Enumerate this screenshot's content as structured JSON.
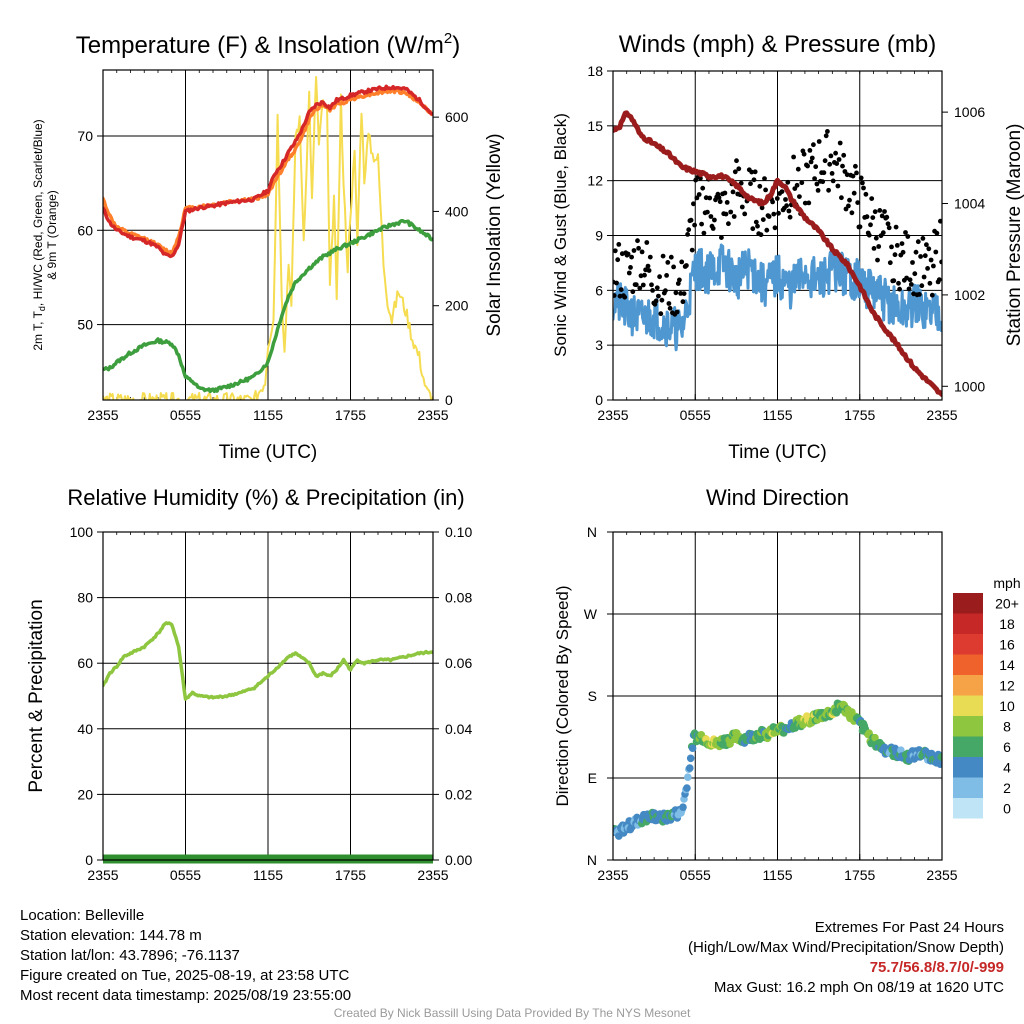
{
  "chart_data": [
    {
      "type": "line",
      "title": "Temperature (F) & Insolation (W/m",
      "title_sup": "2",
      "title_end": ")",
      "xlabel": "Time (UTC)",
      "ylabel_left_line1": "2m T, T",
      "ylabel_left_sub": "d",
      "ylabel_left_line1_end": ", HI/WC (Red, Green, Scarlet/Blue)",
      "ylabel_left_line2": "& 9m T (Orange)",
      "ylabel_right": "Solar Insolation (Yellow)",
      "x_tick_labels": [
        "2355",
        "0555",
        "1155",
        "1755",
        "2355"
      ],
      "xlim": [
        0,
        24
      ],
      "ylim_left": [
        42,
        77
      ],
      "yticks_left": [
        50,
        60,
        70
      ],
      "ylim_right": [
        0,
        700
      ],
      "yticks_right": [
        0,
        200,
        400,
        600
      ],
      "series": [
        {
          "name": "2m T",
          "color": "#d62728",
          "axis": "left",
          "x": [
            0,
            0.5,
            1,
            2,
            3,
            3.5,
            4,
            4.5,
            5,
            5.5,
            6,
            7,
            8,
            9,
            10,
            11,
            12,
            12.5,
            13,
            13.5,
            14,
            14.5,
            15,
            15.5,
            16,
            16.5,
            17,
            17.5,
            18,
            19,
            20,
            21,
            22,
            23,
            24
          ],
          "y": [
            62.3,
            60.8,
            60.0,
            59.3,
            58.9,
            58.6,
            58.2,
            57.4,
            57.2,
            58.5,
            62.0,
            62.4,
            62.6,
            62.9,
            63.1,
            63.3,
            64.2,
            66.0,
            67.0,
            68.3,
            69.4,
            70.8,
            72.5,
            73.3,
            73.6,
            73.0,
            73.8,
            74.0,
            74.3,
            74.7,
            75.0,
            75.2,
            75.0,
            73.8,
            72.2
          ]
        },
        {
          "name": "9m T",
          "color": "#ff7f2a",
          "axis": "left",
          "x": [
            0,
            0.5,
            1,
            2,
            3,
            3.5,
            4,
            4.5,
            5,
            5.5,
            6,
            7,
            8,
            9,
            10,
            11,
            12,
            12.5,
            13,
            13.5,
            14,
            14.5,
            15,
            15.5,
            16,
            16.5,
            17,
            17.5,
            18,
            19,
            20,
            21,
            22,
            23,
            24
          ],
          "y": [
            63.3,
            61.5,
            60.3,
            59.6,
            59.1,
            58.8,
            58.4,
            57.9,
            57.6,
            59.3,
            62.3,
            62.5,
            62.7,
            63.0,
            63.2,
            63.3,
            63.8,
            65.3,
            66.4,
            67.6,
            68.6,
            70.0,
            71.8,
            72.9,
            73.3,
            72.8,
            73.3,
            73.6,
            73.9,
            74.3,
            74.6,
            74.8,
            74.6,
            73.6,
            72.2
          ]
        },
        {
          "name": "2m Td",
          "color": "#3d9e3d",
          "axis": "left",
          "x": [
            0,
            0.5,
            1,
            2,
            3,
            4,
            5,
            5.5,
            6,
            6.5,
            7,
            8,
            9,
            10,
            11,
            12,
            12.5,
            13,
            13.5,
            14,
            15,
            16,
            17,
            18,
            19,
            20,
            21,
            22,
            23,
            24
          ],
          "y": [
            45.2,
            45.4,
            46.0,
            47.0,
            47.8,
            48.3,
            48.0,
            46.8,
            44.4,
            44.0,
            43.2,
            43.0,
            43.4,
            43.9,
            44.5,
            46.0,
            48.5,
            51.0,
            53.0,
            54.5,
            56.0,
            57.2,
            58.0,
            58.6,
            59.3,
            60.0,
            60.6,
            61.0,
            60.0,
            59.0
          ]
        },
        {
          "name": "Solar Insolation",
          "color": "#f5dc50",
          "axis": "right",
          "x": [
            0,
            9,
            11,
            11.8,
            12,
            12.4,
            12.7,
            13,
            13.2,
            13.5,
            13.7,
            14,
            14.3,
            14.6,
            15,
            15.2,
            15.5,
            15.7,
            16,
            16.3,
            16.5,
            16.8,
            17,
            17.3,
            17.5,
            17.8,
            18,
            18.3,
            18.5,
            18.8,
            19,
            19.3,
            19.6,
            20,
            20.4,
            20.7,
            21,
            21.5,
            22,
            22.5,
            23,
            23.5,
            24
          ],
          "y": [
            0,
            0,
            0,
            40,
            120,
            170,
            600,
            230,
            100,
            300,
            190,
            560,
            590,
            340,
            650,
            420,
            690,
            540,
            630,
            610,
            230,
            430,
            200,
            640,
            450,
            280,
            400,
            520,
            330,
            620,
            470,
            560,
            520,
            510,
            290,
            210,
            170,
            230,
            190,
            130,
            90,
            20,
            0
          ]
        }
      ]
    },
    {
      "type": "line",
      "title": "Winds (mph) & Pressure (mb)",
      "xlabel": "Time (UTC)",
      "ylabel_left": "Sonic Wind & Gust (Blue, Black)",
      "ylabel_right": "Station Pressure (Maroon)",
      "x_tick_labels": [
        "2355",
        "0555",
        "1155",
        "1755",
        "2355"
      ],
      "xlim": [
        0,
        24
      ],
      "ylim_left": [
        0,
        18
      ],
      "yticks_left": [
        0,
        3,
        6,
        9,
        12,
        15,
        18
      ],
      "ylim_right": [
        999.7,
        1006.9
      ],
      "yticks_right": [
        1000,
        1002,
        1004,
        1006
      ],
      "series": [
        {
          "name": "Sonic Wind",
          "color": "#4f97d0",
          "axis": "left",
          "x": [
            0,
            1,
            2,
            3,
            4,
            5,
            6,
            7,
            8,
            9,
            10,
            11,
            12,
            13,
            14,
            15,
            16,
            17,
            18,
            19,
            20,
            21,
            22,
            23,
            24
          ],
          "y": [
            5.5,
            4.9,
            4.4,
            4.6,
            4.1,
            3.8,
            7.2,
            7.0,
            7.5,
            6.6,
            7.3,
            6.2,
            6.8,
            6.1,
            7.0,
            6.4,
            7.2,
            6.8,
            6.5,
            5.9,
            5.4,
            4.8,
            5.2,
            4.9,
            5.0
          ]
        },
        {
          "name": "Gust",
          "color": "#000000",
          "axis": "left",
          "x": [
            0,
            1,
            2,
            3,
            4,
            5,
            6,
            7,
            8,
            9,
            10,
            11,
            12,
            13,
            14,
            15,
            16,
            17,
            18,
            19,
            20,
            21,
            22,
            23,
            24
          ],
          "y": [
            7.2,
            6.8,
            7.8,
            6.5,
            6.2,
            6.0,
            10.5,
            10.8,
            10.0,
            11.6,
            11.0,
            10.5,
            11.0,
            11.6,
            12.0,
            12.8,
            13.2,
            12.0,
            10.8,
            9.5,
            8.6,
            7.6,
            7.4,
            7.0,
            8.4
          ]
        },
        {
          "name": "Station Pressure",
          "color": "#9b1c1c",
          "axis": "right",
          "x": [
            0,
            0.5,
            1,
            1.5,
            2,
            3,
            4,
            5,
            6,
            7,
            8,
            9,
            10,
            11,
            11.5,
            12,
            12.5,
            13,
            13.5,
            14,
            15,
            16,
            17,
            18,
            19,
            20,
            21,
            22,
            23,
            24
          ],
          "y": [
            1005.6,
            1005.7,
            1006.0,
            1005.8,
            1005.5,
            1005.3,
            1005.1,
            1004.8,
            1004.7,
            1004.6,
            1004.6,
            1004.4,
            1004.1,
            1004.0,
            1004.2,
            1004.5,
            1004.4,
            1004.1,
            1003.9,
            1003.7,
            1003.4,
            1003.0,
            1002.7,
            1002.2,
            1001.6,
            1001.2,
            1000.8,
            1000.4,
            1000.1,
            999.8
          ]
        }
      ]
    },
    {
      "type": "line",
      "title": "Relative Humidity (%) & Precipitation (in)",
      "xlabel": "",
      "ylabel_left": "Percent & Precipitation",
      "x_tick_labels": [
        "2355",
        "0555",
        "1155",
        "1755",
        "2355"
      ],
      "xlim": [
        0,
        24
      ],
      "ylim_left": [
        0,
        100
      ],
      "yticks_left": [
        0,
        20,
        40,
        60,
        80,
        100
      ],
      "ylim_right": [
        0,
        0.1
      ],
      "yticks_right": [
        "0.00",
        "0.02",
        "0.04",
        "0.06",
        "0.08",
        "0.10"
      ],
      "series": [
        {
          "name": "Relative Humidity",
          "color": "#8ec63f",
          "axis": "left",
          "x": [
            0,
            0.5,
            1,
            1.5,
            2,
            3,
            4,
            4.5,
            5,
            5.5,
            6,
            6.5,
            7,
            8,
            9,
            10,
            11,
            12,
            12.5,
            13,
            13.5,
            14,
            15,
            15.5,
            16,
            16.5,
            17,
            17.5,
            18,
            18.5,
            19,
            20,
            21,
            22,
            23,
            24
          ],
          "y": [
            53,
            57,
            59,
            62,
            63,
            65,
            69,
            72,
            72,
            65,
            49,
            51,
            50,
            49.5,
            50,
            51,
            52.5,
            56,
            58,
            60,
            62,
            63,
            60,
            56,
            57,
            56,
            58,
            61,
            58,
            61,
            60,
            61,
            61,
            62,
            63,
            63.5
          ]
        },
        {
          "name": "Precipitation",
          "color": "#2f8f2f",
          "axis": "right",
          "x": [
            0,
            24
          ],
          "y": [
            0,
            0
          ]
        }
      ]
    },
    {
      "type": "scatter",
      "title": "Wind Direction",
      "ylabel_left": "Direction (Colored By Speed)",
      "x_tick_labels": [
        "2355",
        "0555",
        "1155",
        "1755",
        "2355"
      ],
      "xlim": [
        0,
        24
      ],
      "ylim": [
        0,
        360
      ],
      "y_tick_labels": [
        "N",
        "E",
        "S",
        "W",
        "N"
      ],
      "legend": {
        "title": "mph",
        "labels": [
          "20+",
          "18",
          "16",
          "14",
          "12",
          "10",
          "8",
          "6",
          "4",
          "2",
          "0"
        ],
        "colors": [
          "#9b1c1c",
          "#c62828",
          "#dd3a30",
          "#f0622c",
          "#f6a347",
          "#e9dc55",
          "#8ec63f",
          "#45a866",
          "#4489c3",
          "#7fbde6",
          "#bfe4f6"
        ],
        "placement": "right"
      },
      "series": [
        {
          "name": "direction",
          "x": [
            0,
            0.5,
            1,
            1.5,
            2,
            2.5,
            3,
            3.5,
            4,
            4.5,
            5,
            5.3,
            5.6,
            5.9,
            6.5,
            7,
            7.5,
            8,
            8.5,
            9,
            9.5,
            10,
            10.5,
            11,
            11.5,
            12,
            12.5,
            13,
            13.5,
            14,
            14.5,
            15,
            15.5,
            16,
            16.5,
            17,
            17.5,
            18,
            18.5,
            19,
            19.5,
            20,
            20.5,
            21,
            21.5,
            22,
            22.5,
            23,
            23.5,
            24
          ],
          "y": [
            30,
            32,
            36,
            40,
            44,
            46,
            48,
            45,
            47,
            50,
            52,
            75,
            105,
            135,
            135,
            130,
            127,
            130,
            132,
            135,
            133,
            135,
            137,
            138,
            140,
            142,
            145,
            148,
            150,
            152,
            156,
            158,
            160,
            162,
            170,
            165,
            157,
            150,
            140,
            130,
            125,
            120,
            118,
            115,
            113,
            115,
            117,
            115,
            112,
            110
          ],
          "speed": [
            4,
            3,
            4,
            3,
            4,
            5,
            4,
            4,
            5,
            4,
            3,
            3,
            4,
            5,
            7,
            8,
            9,
            6,
            7,
            8,
            6,
            5,
            7,
            6,
            8,
            7,
            6,
            5,
            7,
            8,
            9,
            6,
            7,
            8,
            6,
            7,
            8,
            5,
            6,
            7,
            5,
            4,
            5,
            4,
            5,
            3,
            4,
            4,
            5,
            4
          ]
        }
      ]
    }
  ],
  "footer": {
    "location": "Location: Belleville",
    "elevation": "Station elevation: 144.78 m",
    "latlon": "Station lat/lon: 43.7896; -76.1137",
    "created": "Figure created on Tue, 2025-08-19, at 23:58 UTC",
    "recent": "Most recent data timestamp: 2025/08/19 23:55:00",
    "extremes_title": "Extremes For Past 24 Hours",
    "extremes_legend": "(High/Low/Max Wind/Precipitation/Snow Depth)",
    "extremes_values": "75.7/56.8/8.7/0/-999",
    "max_gust": "Max Gust: 16.2 mph On 08/19 at 1620 UTC",
    "credit": "Created By Nick Bassill Using Data Provided By The NYS Mesonet"
  }
}
